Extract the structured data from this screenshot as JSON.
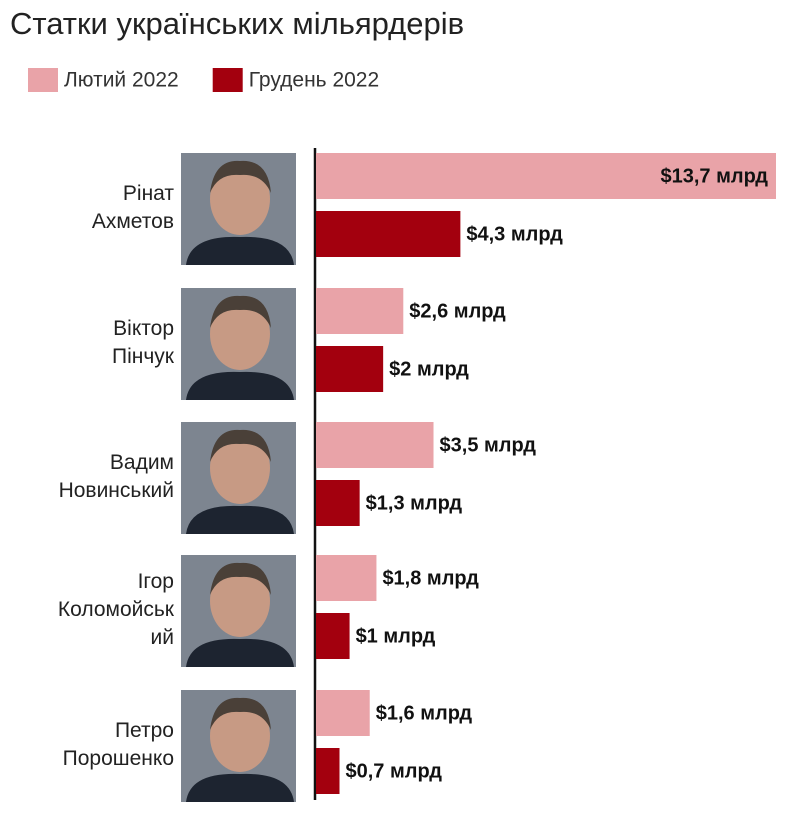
{
  "chart_data": {
    "type": "bar",
    "orientation": "horizontal",
    "title": "Статки українських мільярдерів",
    "categories": [
      "Рінат\nАхметов",
      "Віктор\nПінчук",
      "Вадим\nНовинський",
      "Ігор\nКоломойськ\nий",
      "Петро\nПорошенко"
    ],
    "series": [
      {
        "name": "Лютий 2022",
        "color": "#e9a3a8",
        "values": [
          13.7,
          2.6,
          3.5,
          1.8,
          1.6
        ],
        "value_labels": [
          "$13,7 млрд",
          "$2,6 млрд",
          "$3,5 млрд",
          "$1,8 млрд",
          "$1,6 млрд"
        ]
      },
      {
        "name": "Грудень 2022",
        "color": "#a3000e",
        "values": [
          4.3,
          2,
          1.3,
          1,
          0.7
        ],
        "value_labels": [
          "$4,3 млрд",
          "$2 млрд",
          "$1,3 млрд",
          "$1 млрд",
          "$0,7 млрд"
        ]
      }
    ],
    "xlim": [
      0,
      13.7
    ]
  }
}
